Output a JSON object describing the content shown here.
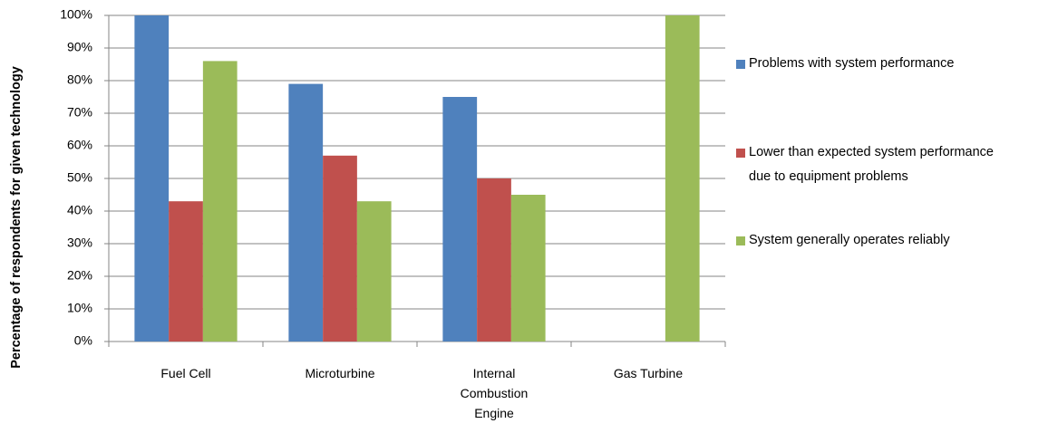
{
  "chart_data": {
    "type": "bar",
    "y_label": "Percentage of respondents for given technology",
    "categories": [
      "Fuel Cell",
      "Microturbine",
      "Internal Combustion Engine",
      "Gas Turbine"
    ],
    "series": [
      {
        "name": "Problems with system performance",
        "color": "#4f81bd",
        "values": [
          100,
          79,
          75,
          0
        ]
      },
      {
        "name": "Lower than expected system performance due to equipment problems",
        "color": "#c0504d",
        "values": [
          43,
          57,
          50,
          0
        ]
      },
      {
        "name": "System generally operates reliably",
        "color": "#9bbb59",
        "values": [
          86,
          43,
          45,
          100
        ]
      }
    ],
    "ylim": [
      0,
      100
    ],
    "yticks": [
      {
        "value": 0,
        "label": "0%"
      },
      {
        "value": 10,
        "label": "10%"
      },
      {
        "value": 20,
        "label": "20%"
      },
      {
        "value": 30,
        "label": "30%"
      },
      {
        "value": 40,
        "label": "40%"
      },
      {
        "value": 50,
        "label": "50%"
      },
      {
        "value": 60,
        "label": "60%"
      },
      {
        "value": 70,
        "label": "70%"
      },
      {
        "value": 80,
        "label": "80%"
      },
      {
        "value": 90,
        "label": "90%"
      },
      {
        "value": 100,
        "label": "100%"
      }
    ],
    "grid": true,
    "legend": "right"
  }
}
